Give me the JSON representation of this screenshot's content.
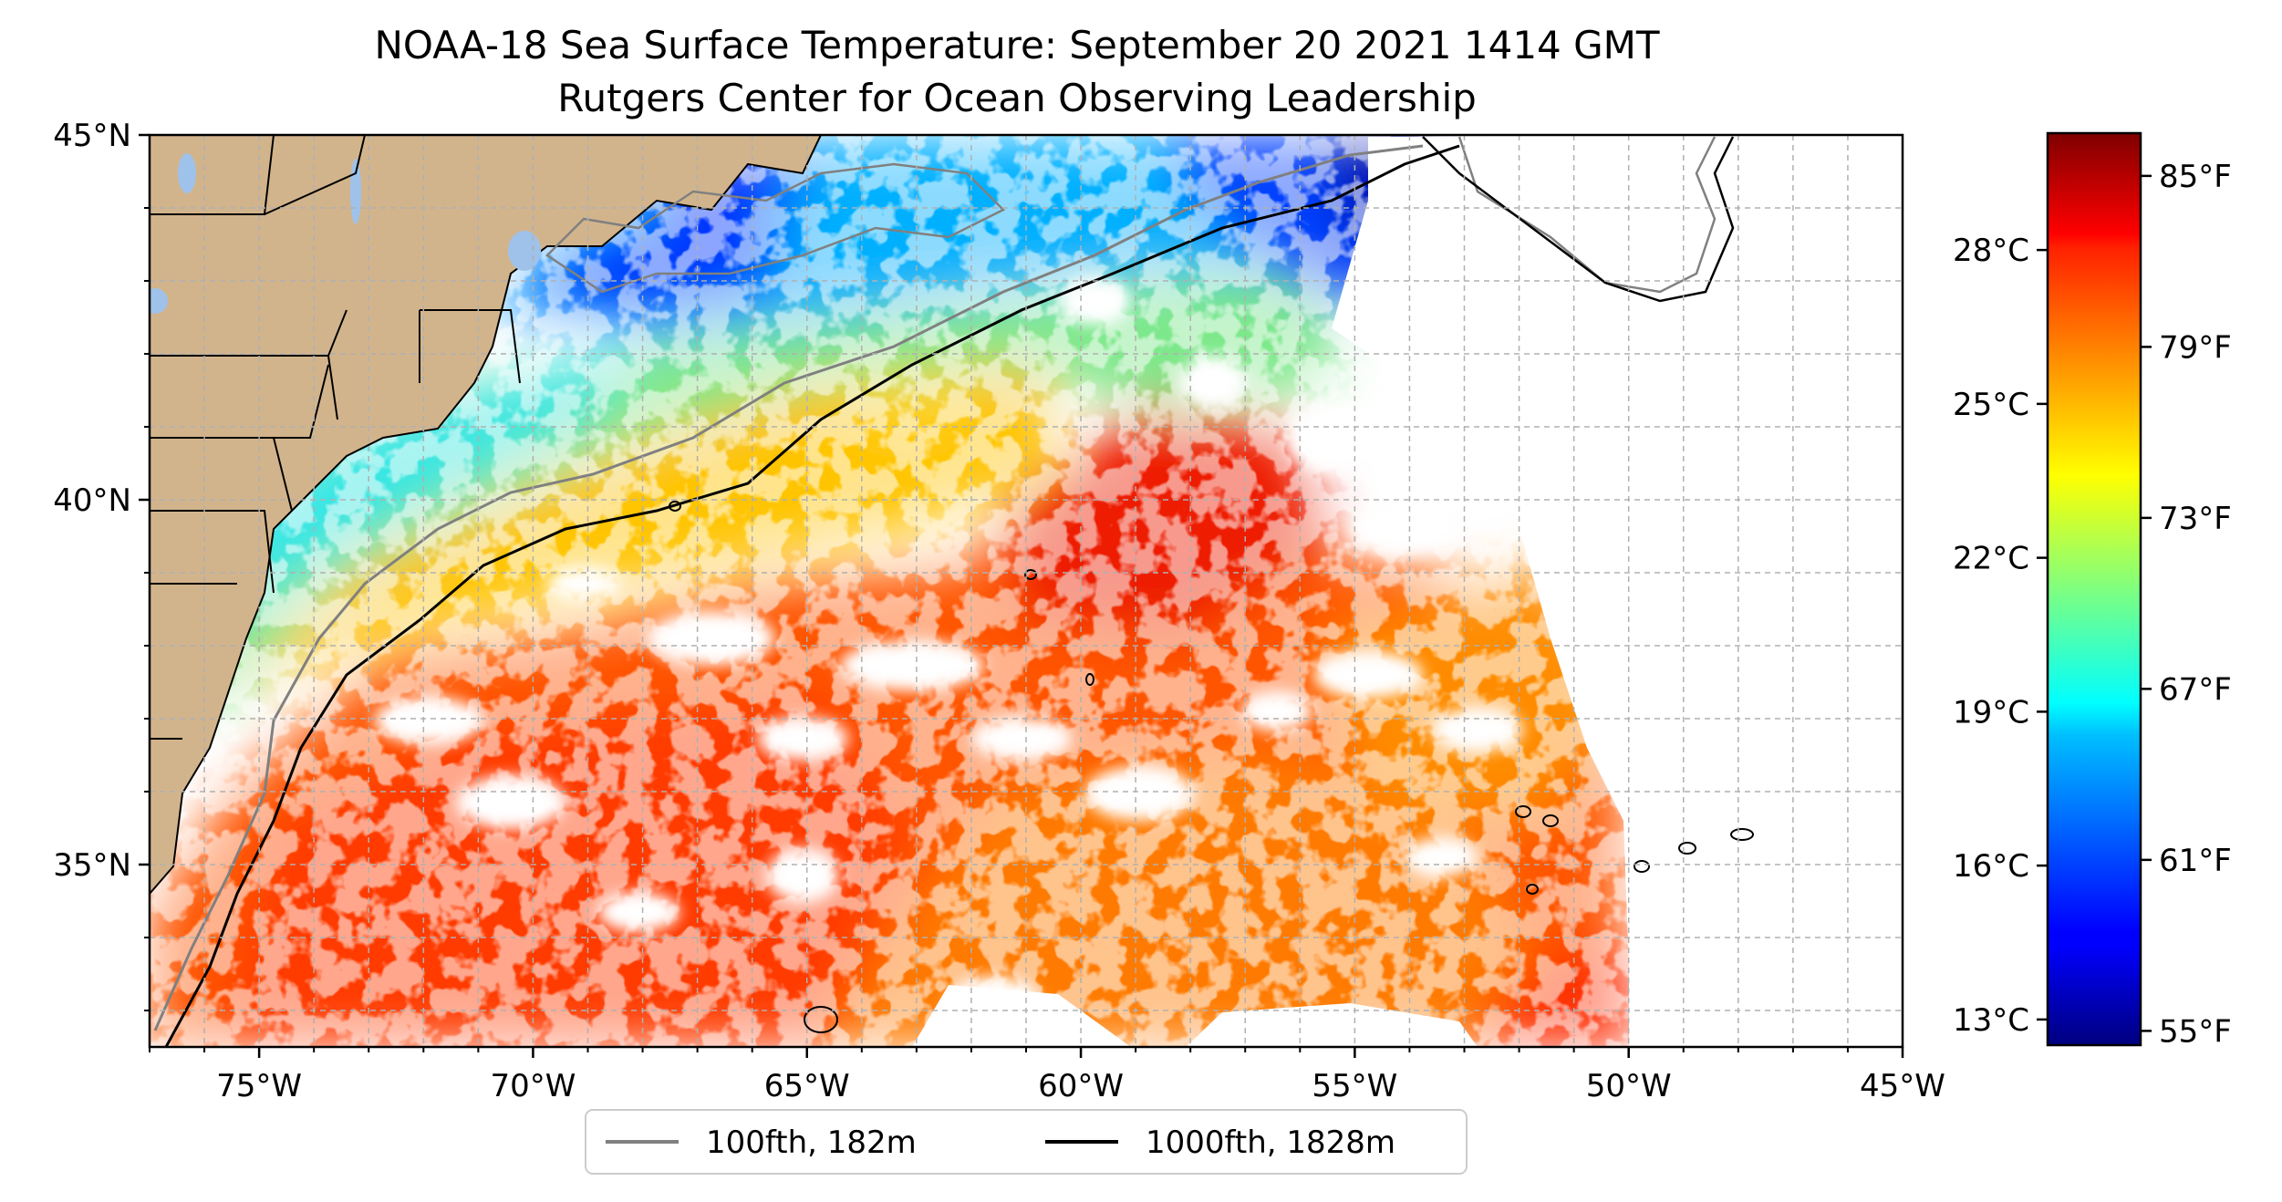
{
  "title": {
    "line1": "NOAA-18 Sea Surface Temperature: September 20 2021 1414 GMT",
    "line2": "Rutgers Center for Ocean Observing Leadership"
  },
  "map": {
    "lon_range": [
      -77,
      -45
    ],
    "lat_range": [
      32.5,
      45
    ],
    "x_ticks": [
      {
        "value": -75,
        "label": "75°W"
      },
      {
        "value": -70,
        "label": "70°W"
      },
      {
        "value": -65,
        "label": "65°W"
      },
      {
        "value": -60,
        "label": "60°W"
      },
      {
        "value": -55,
        "label": "55°W"
      },
      {
        "value": -50,
        "label": "50°W"
      },
      {
        "value": -45,
        "label": "45°W"
      }
    ],
    "y_ticks": [
      {
        "value": 45,
        "label": "45°N"
      },
      {
        "value": 40,
        "label": "40°N"
      },
      {
        "value": 35,
        "label": "35°N"
      }
    ],
    "gridlines": true,
    "grid_spacing_deg": 1,
    "land_color": "#d2b48c",
    "lake_color": "#9ec2ea"
  },
  "legend": {
    "placement": "bottom-center",
    "items": [
      {
        "label": "100fth, 182m",
        "color": "#808080"
      },
      {
        "label": "1000fth, 1828m",
        "color": "#000000"
      }
    ]
  },
  "colorbar": {
    "colormap": "jet",
    "range_f": [
      54.5,
      86.5
    ],
    "celsius_ticks": [
      {
        "value": 28,
        "label": "28°C"
      },
      {
        "value": 25,
        "label": "25°C"
      },
      {
        "value": 22,
        "label": "22°C"
      },
      {
        "value": 19,
        "label": "19°C"
      },
      {
        "value": 16,
        "label": "16°C"
      },
      {
        "value": 13,
        "label": "13°C"
      }
    ],
    "fahrenheit_ticks": [
      {
        "value": 85,
        "label": "85°F"
      },
      {
        "value": 79,
        "label": "79°F"
      },
      {
        "value": 73,
        "label": "73°F"
      },
      {
        "value": 67,
        "label": "67°F"
      },
      {
        "value": 61,
        "label": "61°F"
      },
      {
        "value": 55,
        "label": "55°F"
      }
    ]
  }
}
